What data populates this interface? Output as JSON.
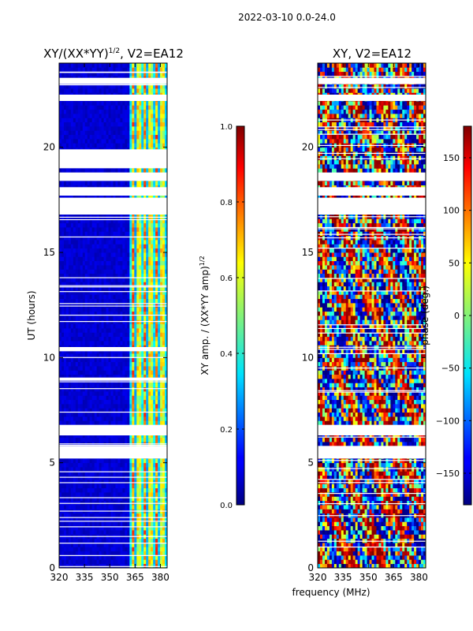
{
  "figure": {
    "suptitle": "2022-03-10 0.0-24.0",
    "shared_xlabel": "frequency (MHz)"
  },
  "chart_data": [
    {
      "type": "heatmap",
      "title_main": "XY/(XX*YY)",
      "title_sup": "1/2",
      "title_rest": ", V2=EA12",
      "ylabel": "UT (hours)",
      "xlim": [
        320,
        384
      ],
      "ylim": [
        0,
        24
      ],
      "xticks": [
        320,
        335,
        350,
        365,
        380
      ],
      "yticks": [
        0,
        5,
        10,
        15,
        20
      ],
      "colorbar": {
        "label_main": "XY amp. / (XX*YY amp)",
        "label_sup": "1/2",
        "range": [
          0.0,
          1.0
        ],
        "ticks": [
          "0.0",
          "0.2",
          "0.4",
          "0.6",
          "0.8",
          "1.0"
        ],
        "tick_values": [
          0.0,
          0.2,
          0.4,
          0.6,
          0.8,
          1.0
        ]
      },
      "colormap": "jet",
      "flagged_ut_gaps_hours": [
        [
          17.7,
          18.1
        ],
        [
          16.8,
          17.6
        ],
        [
          18.4,
          18.8
        ],
        [
          19.0,
          19.9
        ],
        [
          22.2,
          22.5
        ],
        [
          23.0,
          23.3
        ],
        [
          5.2,
          5.8
        ],
        [
          6.3,
          6.8
        ],
        [
          8.9,
          9.05
        ],
        [
          10.3,
          10.5
        ]
      ],
      "notes": "Amplitude mostly ~0.05 (dark blue); elevated values (0.4-0.9) in channel strips near 362-382 MHz"
    },
    {
      "type": "heatmap",
      "title": "XY, V2=EA12",
      "xlim": [
        320,
        384
      ],
      "ylim": [
        0,
        24
      ],
      "xticks": [
        320,
        335,
        350,
        365,
        380
      ],
      "yticks": [
        0,
        5,
        10,
        15,
        20
      ],
      "colorbar": {
        "label": "phase (deg.)",
        "range": [
          -180,
          180
        ],
        "ticks": [
          "−150",
          "−100",
          "−50",
          "0",
          "50",
          "100",
          "150"
        ],
        "tick_values": [
          -150,
          -100,
          -50,
          0,
          50,
          100,
          150
        ]
      },
      "colormap": "jet",
      "flagged_ut_gaps_hours": [
        [
          17.7,
          18.1
        ],
        [
          16.8,
          17.6
        ],
        [
          18.4,
          18.8
        ],
        [
          22.2,
          22.5
        ],
        [
          23.0,
          23.3
        ],
        [
          5.2,
          5.8
        ],
        [
          6.3,
          6.8
        ]
      ],
      "notes": "Phase varies across full range (-180 to 180 deg) with noisy structure"
    }
  ]
}
